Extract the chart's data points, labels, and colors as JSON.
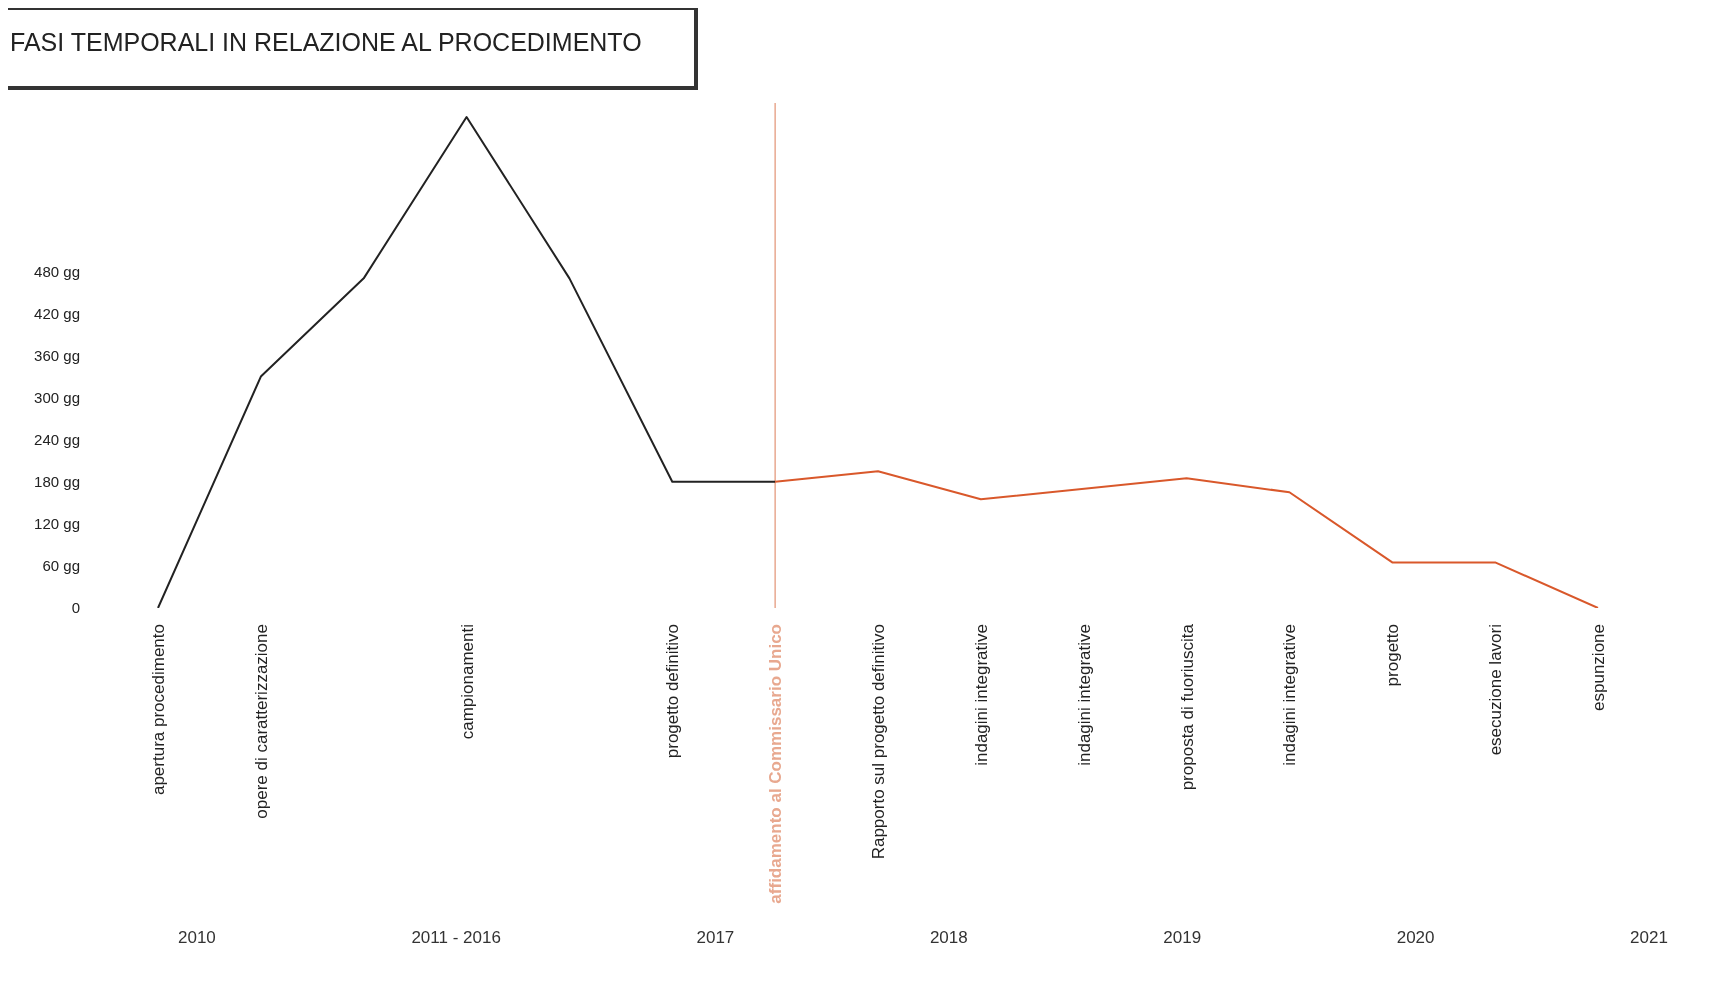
{
  "chart_data": {
    "type": "line",
    "title": "FASI TEMPORALI IN RELAZIONE AL PROCEDIMENTO",
    "categories": [
      "apertura procedimento",
      "opere di caratterizzazione",
      null,
      "campionamenti",
      null,
      "progetto definitivo",
      "affidamento al Commissario Unico",
      "Rapporto sul progetto definitivo",
      "indagini integrative",
      "indagini integrative",
      "proposta di fuoriuscita",
      "indagini integrative",
      "progetto",
      "esecuzione lavori",
      "espunzione"
    ],
    "series": [
      {
        "color": "#222222",
        "values": [
          0,
          330,
          470,
          700,
          470,
          180,
          180,
          null,
          null,
          null,
          null,
          null,
          null,
          null,
          null
        ]
      },
      {
        "color": "#d9582b",
        "values": [
          null,
          null,
          null,
          null,
          null,
          null,
          180,
          195,
          155,
          null,
          185,
          165,
          65,
          65,
          0
        ]
      }
    ],
    "ylim": [
      0,
      720
    ],
    "yticks": [
      {
        "value": 0,
        "label": "0"
      },
      {
        "value": 60,
        "label": "60 gg"
      },
      {
        "value": 120,
        "label": "120 gg"
      },
      {
        "value": 180,
        "label": "180 gg"
      },
      {
        "value": 240,
        "label": "240 gg"
      },
      {
        "value": 300,
        "label": "300 gg"
      },
      {
        "value": 360,
        "label": "360 gg"
      },
      {
        "value": 420,
        "label": "420 gg"
      },
      {
        "value": 480,
        "label": "480 gg"
      }
    ],
    "ref_lines": [
      {
        "axis": "x",
        "value": "affidamento al Commissario Unico",
        "label": null,
        "color": "#e8a88f"
      }
    ],
    "annotations": [
      "2010",
      "2011 - 2016",
      "2017",
      "2018",
      "2019",
      "2020",
      "2021"
    ],
    "grid": false,
    "legend": false,
    "marker": "none",
    "line_style": "solid"
  }
}
